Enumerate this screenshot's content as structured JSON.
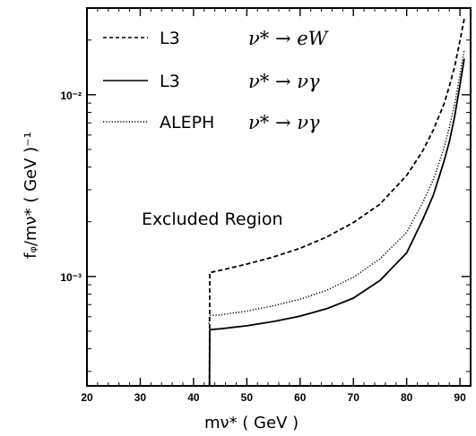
{
  "chart_data": {
    "type": "line",
    "xlabel": "mν* ( GeV )",
    "ylabel": "fᵩ/mν* ( GeV )⁻¹",
    "xlim": [
      20,
      92
    ],
    "ylim": [
      0.00025,
      0.03
    ],
    "yscale": "log",
    "x_ticks": [
      20,
      30,
      40,
      50,
      60,
      70,
      80,
      90
    ],
    "y_tick_labels": [
      "10⁻³",
      "10⁻²"
    ],
    "y_tick_values": [
      0.001,
      0.01
    ],
    "grid": false,
    "legend_position": "top-left",
    "annotation": "Excluded Region",
    "series": [
      {
        "name": "L3",
        "process": "ν* → eW",
        "style": "dashed",
        "x": [
          43,
          43.05,
          45,
          50,
          55,
          60,
          65,
          70,
          75,
          80,
          83,
          85,
          87,
          88,
          89,
          90,
          90.8
        ],
        "y": [
          0.00025,
          0.00105,
          0.00108,
          0.00117,
          0.00128,
          0.00143,
          0.00165,
          0.00198,
          0.0025,
          0.0036,
          0.0049,
          0.0064,
          0.0089,
          0.0111,
          0.0143,
          0.0198,
          0.0262
        ]
      },
      {
        "name": "L3",
        "process": "ν* → νγ",
        "style": "solid",
        "x": [
          43,
          43.05,
          45,
          50,
          55,
          60,
          65,
          70,
          75,
          80,
          83,
          85,
          87,
          88,
          89,
          90,
          90.8
        ],
        "y": [
          0.00025,
          0.00051,
          0.000515,
          0.000535,
          0.000565,
          0.000605,
          0.000665,
          0.00076,
          0.00095,
          0.00135,
          0.00205,
          0.0028,
          0.0043,
          0.0055,
          0.0076,
          0.0113,
          0.0158
        ]
      },
      {
        "name": "ALEPH",
        "process": "ν* → νγ",
        "style": "dotted",
        "x": [
          42.9,
          43,
          45,
          50,
          55,
          60,
          65,
          70,
          75,
          80,
          83,
          85,
          87,
          88,
          89,
          90,
          90.8
        ],
        "y": [
          0.00055,
          0.00061,
          0.000615,
          0.000645,
          0.00069,
          0.00075,
          0.00084,
          0.00099,
          0.00125,
          0.00175,
          0.00255,
          0.0034,
          0.0051,
          0.0066,
          0.0089,
          0.0128,
          0.0178
        ]
      }
    ]
  }
}
